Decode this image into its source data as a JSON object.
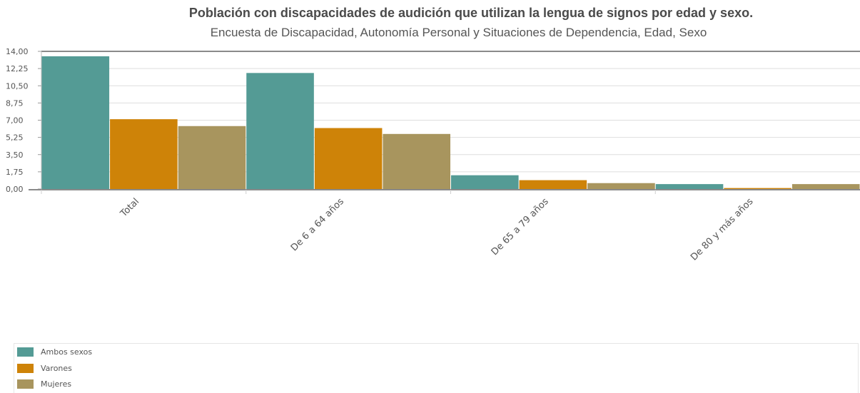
{
  "chart_data": {
    "type": "bar",
    "title": "Población con discapacidades de audición que utilizan la lengua de signos por edad y sexo.",
    "subtitle": "Encuesta de Discapacidad, Autonomía Personal y Situaciones de Dependencia, Edad, Sexo",
    "categories": [
      "Total",
      "De 6 a 64 años",
      "De 65 a 79 años",
      "De 80 y más años"
    ],
    "series": [
      {
        "name": "Ambos sexos",
        "color": "#549b95",
        "values": [
          13.5,
          11.8,
          1.4,
          0.5
        ]
      },
      {
        "name": "Varones",
        "color": "#ce8308",
        "values": [
          7.1,
          6.2,
          0.9,
          0.1
        ]
      },
      {
        "name": "Mujeres",
        "color": "#a8955e",
        "values": [
          6.4,
          5.6,
          0.6,
          0.5
        ]
      }
    ],
    "y_ticks": [
      "0,00",
      "1,75",
      "3,50",
      "5,25",
      "7,00",
      "8,75",
      "10,50",
      "12,25",
      "14,00"
    ],
    "ylim": [
      0,
      14
    ],
    "grid": true,
    "legend_position": "bottom-left"
  }
}
